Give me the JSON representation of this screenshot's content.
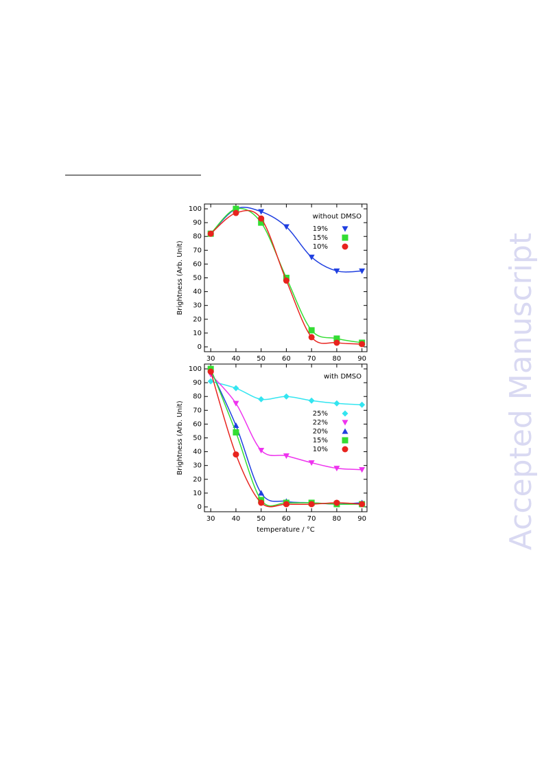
{
  "watermark": "Accepted Manuscript",
  "chart_data": [
    {
      "type": "line",
      "annotation": "without DMSO",
      "ylabel": "Brightness (Arb. Unit)",
      "xlim": [
        27.5,
        92
      ],
      "ylim": [
        -3.5,
        103.5
      ],
      "xticks": [
        30,
        40,
        50,
        60,
        70,
        80,
        90
      ],
      "yticks": [
        0,
        10,
        20,
        30,
        40,
        50,
        60,
        70,
        80,
        90,
        100
      ],
      "x": [
        30,
        40,
        50,
        60,
        70,
        80,
        90
      ],
      "series": [
        {
          "name": "19%",
          "color": "#1f3fe0",
          "marker": "triangle-down",
          "values": [
            82,
            100,
            98,
            87,
            65,
            55,
            55
          ]
        },
        {
          "name": "15%",
          "color": "#33dd33",
          "marker": "square",
          "values": [
            82,
            100,
            90,
            50,
            12,
            6,
            3
          ]
        },
        {
          "name": "10%",
          "color": "#e8231e",
          "marker": "circle",
          "values": [
            82,
            97,
            93,
            48,
            7,
            3,
            2
          ]
        }
      ]
    },
    {
      "type": "line",
      "annotation": "with DMSO",
      "ylabel": "Brightness (Arb. Unit)",
      "xlabel": "temperature / °C",
      "xlim": [
        27.5,
        92
      ],
      "ylim": [
        -3.5,
        103.5
      ],
      "xticks": [
        30,
        40,
        50,
        60,
        70,
        80,
        90
      ],
      "yticks": [
        0,
        10,
        20,
        30,
        40,
        50,
        60,
        70,
        80,
        90,
        100
      ],
      "x": [
        30,
        40,
        50,
        60,
        70,
        80,
        90
      ],
      "series": [
        {
          "name": "25%",
          "color": "#33e5f0",
          "marker": "diamond",
          "values": [
            91,
            86,
            78,
            80,
            77,
            75,
            74
          ]
        },
        {
          "name": "22%",
          "color": "#ee33ee",
          "marker": "triangle-down",
          "values": [
            96,
            75,
            41,
            37,
            32,
            28,
            27
          ]
        },
        {
          "name": "20%",
          "color": "#1f3fe0",
          "marker": "triangle-up",
          "values": [
            99,
            59,
            10,
            4,
            3,
            2,
            3
          ]
        },
        {
          "name": "15%",
          "color": "#33dd33",
          "marker": "square",
          "values": [
            100,
            54,
            5,
            3,
            3,
            2,
            2
          ]
        },
        {
          "name": "10%",
          "color": "#e8231e",
          "marker": "circle",
          "values": [
            98,
            38,
            3,
            2,
            2,
            3,
            2
          ]
        }
      ]
    }
  ]
}
